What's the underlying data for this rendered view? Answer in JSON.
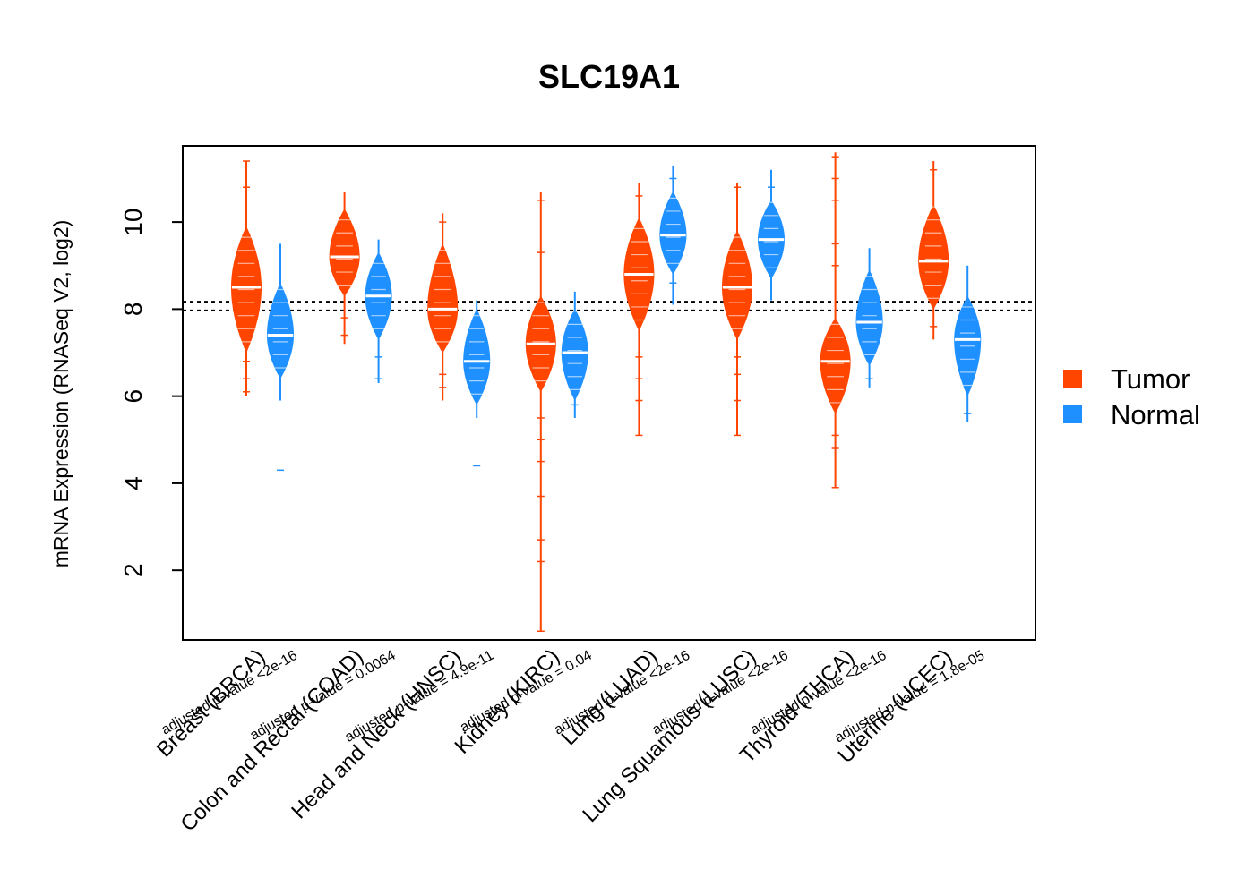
{
  "chart_data": {
    "type": "violin",
    "title": "SLC19A1",
    "xlabel": "",
    "ylabel": "mRNA Expression (RNASeq V2, log2)",
    "ylim": [
      0.4,
      11.75
    ],
    "yticks": [
      2,
      4,
      6,
      8,
      10
    ],
    "reference_lines": [
      7.97,
      8.17
    ],
    "series": [
      {
        "name": "Tumor",
        "color": "#FF4500"
      },
      {
        "name": "Normal",
        "color": "#1E90FF"
      }
    ],
    "categories": [
      {
        "label": "Breast (BRCA)",
        "pvalue": "adjusted p-value <2e-16",
        "tumor": {
          "median": 8.5,
          "body": [
            7.0,
            9.9
          ],
          "whisker": [
            6.0,
            11.4
          ],
          "outliers": [
            6.1,
            6.4,
            6.8,
            10.8,
            11.4
          ]
        },
        "normal": {
          "median": 7.4,
          "body": [
            6.4,
            8.6
          ],
          "whisker": [
            5.9,
            9.5
          ],
          "outliers": [
            4.3
          ]
        }
      },
      {
        "label": "Colon and Rectal (COAD)",
        "pvalue": "adjusted p-value = 0.0064",
        "tumor": {
          "median": 9.2,
          "body": [
            8.3,
            10.3
          ],
          "whisker": [
            7.2,
            10.7
          ],
          "outliers": [
            7.4,
            7.8
          ]
        },
        "normal": {
          "median": 8.3,
          "body": [
            7.3,
            9.3
          ],
          "whisker": [
            6.3,
            9.6
          ],
          "outliers": [
            6.4,
            6.9
          ]
        }
      },
      {
        "label": "Head and Neck (HNSC)",
        "pvalue": "adjusted p-value = 4.9e-11",
        "tumor": {
          "median": 8.0,
          "body": [
            7.0,
            9.5
          ],
          "whisker": [
            5.9,
            10.2
          ],
          "outliers": [
            6.2,
            6.5,
            10.0
          ]
        },
        "normal": {
          "median": 6.8,
          "body": [
            5.8,
            8.0
          ],
          "whisker": [
            5.5,
            8.2
          ],
          "outliers": [
            4.4
          ]
        }
      },
      {
        "label": "Kidney (KIRC)",
        "pvalue": "adjusted p-value = 0.04",
        "tumor": {
          "median": 7.2,
          "body": [
            6.1,
            8.3
          ],
          "whisker": [
            0.6,
            10.7
          ],
          "outliers": [
            0.6,
            2.2,
            2.7,
            3.7,
            4.5,
            5.0,
            5.5,
            9.3,
            10.5
          ]
        },
        "normal": {
          "median": 7.0,
          "body": [
            5.9,
            8.0
          ],
          "whisker": [
            5.5,
            8.4
          ],
          "outliers": [
            5.8
          ]
        }
      },
      {
        "label": "Lung (LUAD)",
        "pvalue": "adjusted p-value <2e-16",
        "tumor": {
          "median": 8.8,
          "body": [
            7.5,
            10.1
          ],
          "whisker": [
            5.1,
            10.9
          ],
          "outliers": [
            5.1,
            5.9,
            6.4,
            6.9,
            10.6
          ]
        },
        "normal": {
          "median": 9.7,
          "body": [
            8.8,
            10.7
          ],
          "whisker": [
            8.1,
            11.3
          ],
          "outliers": [
            8.6,
            11.0
          ]
        }
      },
      {
        "label": "Lung Squamous (LUSC)",
        "pvalue": "adjusted p-value <2e-16",
        "tumor": {
          "median": 8.5,
          "body": [
            7.3,
            9.8
          ],
          "whisker": [
            5.1,
            10.9
          ],
          "outliers": [
            5.1,
            5.9,
            6.5,
            6.9,
            10.8
          ]
        },
        "normal": {
          "median": 9.6,
          "body": [
            8.7,
            10.5
          ],
          "whisker": [
            8.2,
            11.2
          ],
          "outliers": [
            10.8
          ]
        }
      },
      {
        "label": "Thyroid (THCA)",
        "pvalue": "adjusted p-value <2e-16",
        "tumor": {
          "median": 6.8,
          "body": [
            5.6,
            7.8
          ],
          "whisker": [
            3.9,
            11.6
          ],
          "outliers": [
            3.9,
            4.8,
            5.1,
            9.0,
            9.5,
            10.5,
            11.0,
            11.5
          ]
        },
        "normal": {
          "median": 7.7,
          "body": [
            6.7,
            8.9
          ],
          "whisker": [
            6.2,
            9.4
          ],
          "outliers": [
            6.4
          ]
        }
      },
      {
        "label": "Uterine (UCEC)",
        "pvalue": "adjusted p-value = 1.8e-05",
        "tumor": {
          "median": 9.1,
          "body": [
            8.0,
            10.4
          ],
          "whisker": [
            7.3,
            11.4
          ],
          "outliers": [
            7.6,
            11.2
          ]
        },
        "normal": {
          "median": 7.3,
          "body": [
            6.0,
            8.3
          ],
          "whisker": [
            5.4,
            9.0
          ],
          "outliers": [
            5.6
          ]
        }
      }
    ]
  }
}
